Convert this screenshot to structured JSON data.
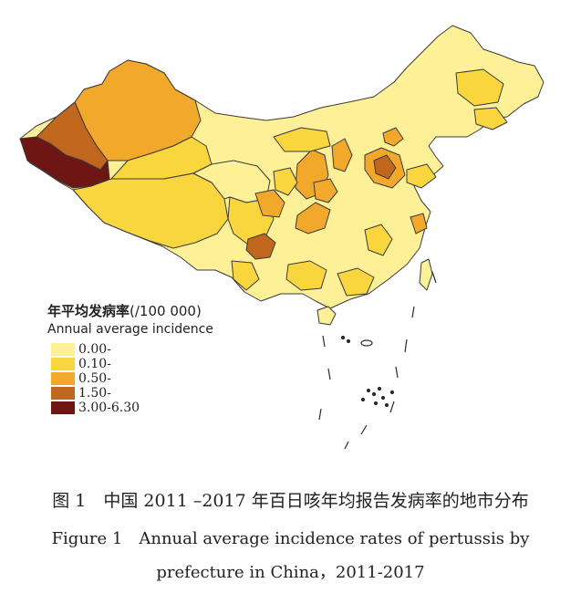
{
  "legend": {
    "title_cn": "年平均发病率",
    "title_unit": "(/100 000)",
    "title_en": "Annual average incidence",
    "classes": [
      {
        "label": "0.00-",
        "color": "#fdf097"
      },
      {
        "label": "0.10-",
        "color": "#f9d53e"
      },
      {
        "label": "0.50-",
        "color": "#f2a92b"
      },
      {
        "label": "1.50-",
        "color": "#c0661d"
      },
      {
        "label": "3.00-6.30",
        "color": "#6e1613"
      }
    ]
  },
  "caption": {
    "line_cn": "图 1　中国 2011 –2017 年百日咳年均报告发病率的地市分布",
    "line_en_1": "Figure 1　Annual average incidence rates of pertussis by",
    "line_en_2": "prefecture in China，2011-2017"
  },
  "colors": {
    "border": "#2a2a2a"
  }
}
